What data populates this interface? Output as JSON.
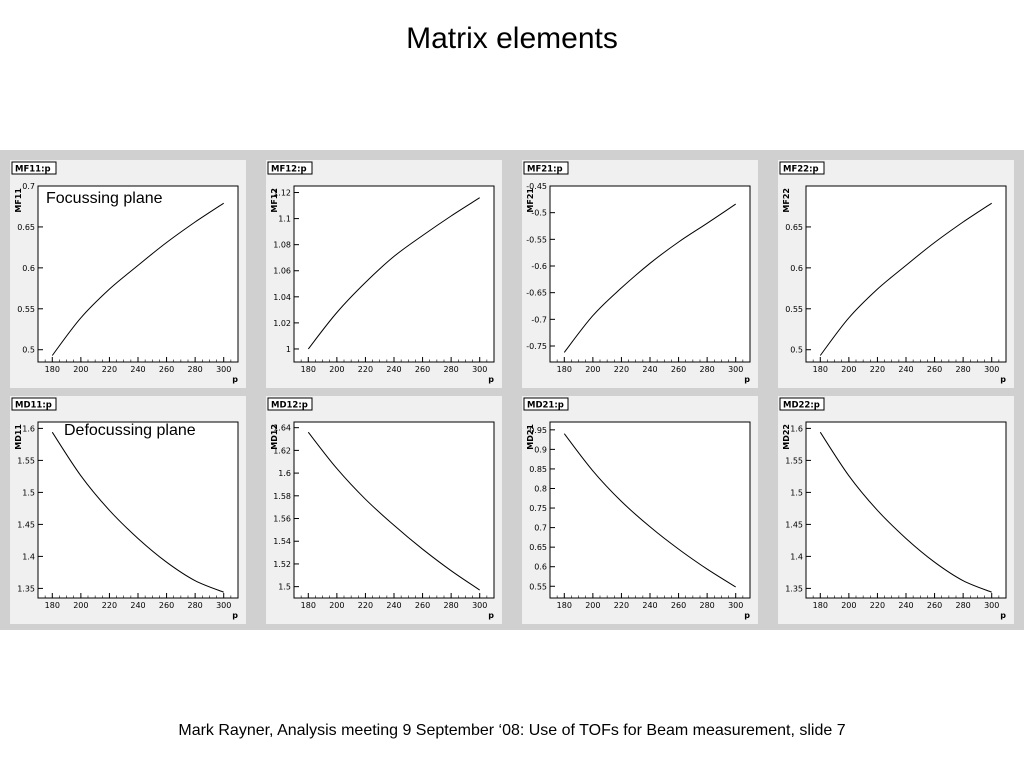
{
  "title": "Matrix elements",
  "footer": "Mark Rayner, Analysis meeting 9 September ‘08: Use of TOFs for Beam measurement, slide 7",
  "plane_labels": {
    "focussing": "Focussing plane",
    "defocussing": "Defocussing plane"
  },
  "colors": {
    "canvas_background": "#d0d0d0",
    "pad_background": "#f0f0f0",
    "line": "#000000"
  },
  "chart_data": [
    {
      "type": "line",
      "pad_title": "MF11:p",
      "ylabel": "MF11",
      "xlabel": "p",
      "xlim": [
        170,
        310
      ],
      "ylim": [
        0.485,
        0.7
      ],
      "xticks": [
        "180",
        "200",
        "220",
        "240",
        "260",
        "280",
        "300"
      ],
      "yticks": [
        "0.5",
        "0.55",
        "0.6",
        "0.65",
        "0.7"
      ],
      "x": [
        180,
        200,
        220,
        240,
        260,
        280,
        300
      ],
      "y": [
        0.493,
        0.539,
        0.574,
        0.603,
        0.631,
        0.656,
        0.679
      ]
    },
    {
      "type": "line",
      "pad_title": "MF12:p",
      "ylabel": "MF12",
      "xlabel": "p",
      "xlim": [
        170,
        310
      ],
      "ylim": [
        0.99,
        1.125
      ],
      "xticks": [
        "180",
        "200",
        "220",
        "240",
        "260",
        "280",
        "300"
      ],
      "yticks": [
        "1",
        "1.02",
        "1.04",
        "1.06",
        "1.08",
        "1.1",
        "1.12"
      ],
      "x": [
        180,
        200,
        220,
        240,
        260,
        280,
        300
      ],
      "y": [
        1.0,
        1.028,
        1.051,
        1.071,
        1.087,
        1.102,
        1.116
      ]
    },
    {
      "type": "line",
      "pad_title": "MF21:p",
      "ylabel": "MF21",
      "xlabel": "p",
      "xlim": [
        170,
        310
      ],
      "ylim": [
        -0.78,
        -0.45
      ],
      "xticks": [
        "180",
        "200",
        "220",
        "240",
        "260",
        "280",
        "300"
      ],
      "yticks": [
        "-0.75",
        "-0.7",
        "-0.65",
        "-0.6",
        "-0.55",
        "-0.5",
        "-0.45"
      ],
      "x": [
        180,
        200,
        220,
        240,
        260,
        280,
        300
      ],
      "y": [
        -0.762,
        -0.693,
        -0.641,
        -0.595,
        -0.555,
        -0.52,
        -0.484
      ]
    },
    {
      "type": "line",
      "pad_title": "MF22:p",
      "ylabel": "MF22",
      "xlabel": "p",
      "xlim": [
        170,
        310
      ],
      "ylim": [
        0.485,
        0.7
      ],
      "xticks": [
        "180",
        "200",
        "220",
        "240",
        "260",
        "280",
        "300"
      ],
      "yticks": [
        "0.5",
        "0.55",
        "0.6",
        "0.65"
      ],
      "x": [
        180,
        200,
        220,
        240,
        260,
        280,
        300
      ],
      "y": [
        0.493,
        0.539,
        0.574,
        0.603,
        0.631,
        0.656,
        0.679
      ]
    },
    {
      "type": "line",
      "pad_title": "MD11:p",
      "ylabel": "MD11",
      "xlabel": "p",
      "xlim": [
        170,
        310
      ],
      "ylim": [
        1.335,
        1.61
      ],
      "xticks": [
        "180",
        "200",
        "220",
        "240",
        "260",
        "280",
        "300"
      ],
      "yticks": [
        "1.35",
        "1.4",
        "1.45",
        "1.5",
        "1.55",
        "1.6"
      ],
      "x": [
        180,
        200,
        220,
        240,
        260,
        280,
        300
      ],
      "y": [
        1.594,
        1.526,
        1.472,
        1.428,
        1.391,
        1.362,
        1.344
      ]
    },
    {
      "type": "line",
      "pad_title": "MD12:p",
      "ylabel": "MD12",
      "xlabel": "p",
      "xlim": [
        170,
        310
      ],
      "ylim": [
        1.49,
        1.645
      ],
      "xticks": [
        "180",
        "200",
        "220",
        "240",
        "260",
        "280",
        "300"
      ],
      "yticks": [
        "1.5",
        "1.52",
        "1.54",
        "1.56",
        "1.58",
        "1.6",
        "1.62",
        "1.64"
      ],
      "x": [
        180,
        200,
        220,
        240,
        260,
        280,
        300
      ],
      "y": [
        1.636,
        1.604,
        1.577,
        1.554,
        1.533,
        1.514,
        1.497
      ]
    },
    {
      "type": "line",
      "pad_title": "MD21:p",
      "ylabel": "MD21",
      "xlabel": "p",
      "xlim": [
        170,
        310
      ],
      "ylim": [
        0.52,
        0.97
      ],
      "xticks": [
        "180",
        "200",
        "220",
        "240",
        "260",
        "280",
        "300"
      ],
      "yticks": [
        "0.55",
        "0.6",
        "0.65",
        "0.7",
        "0.75",
        "0.8",
        "0.85",
        "0.9",
        "0.95"
      ],
      "x": [
        180,
        200,
        220,
        240,
        260,
        280,
        300
      ],
      "y": [
        0.94,
        0.845,
        0.767,
        0.702,
        0.645,
        0.594,
        0.548
      ]
    },
    {
      "type": "line",
      "pad_title": "MD22:p",
      "ylabel": "MD22",
      "xlabel": "p",
      "xlim": [
        170,
        310
      ],
      "ylim": [
        1.335,
        1.61
      ],
      "xticks": [
        "180",
        "200",
        "220",
        "240",
        "260",
        "280",
        "300"
      ],
      "yticks": [
        "1.35",
        "1.4",
        "1.45",
        "1.5",
        "1.55",
        "1.6"
      ],
      "x": [
        180,
        200,
        220,
        240,
        260,
        280,
        300
      ],
      "y": [
        1.594,
        1.526,
        1.472,
        1.428,
        1.391,
        1.362,
        1.344
      ]
    }
  ]
}
